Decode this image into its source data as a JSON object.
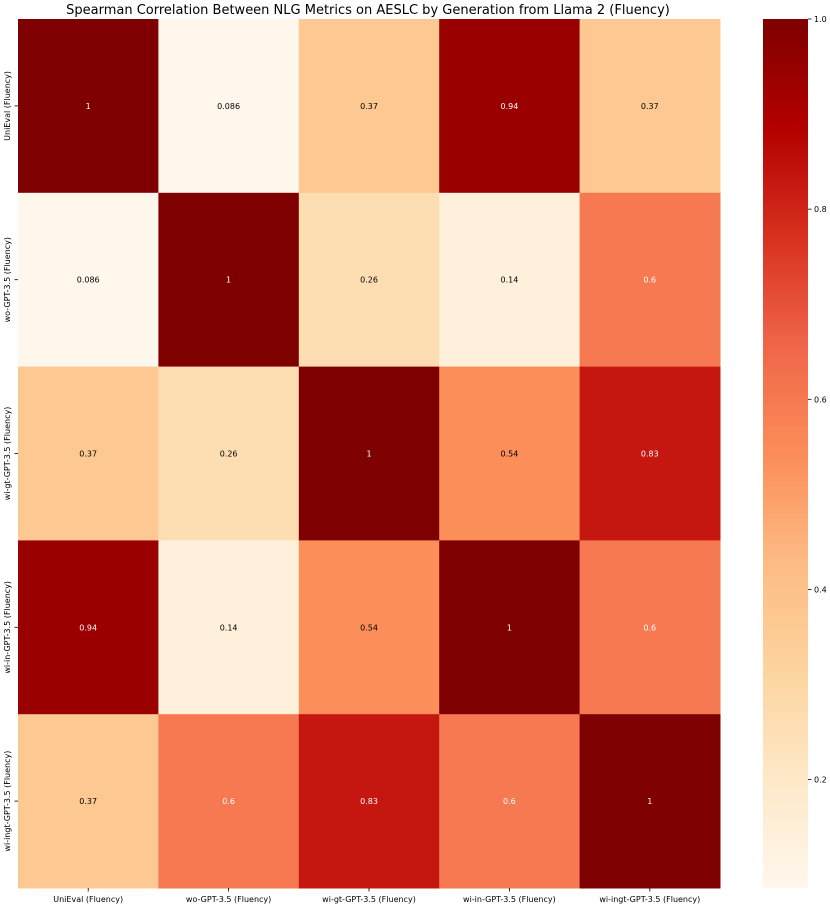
{
  "chart_data": {
    "type": "heatmap",
    "title": "Spearman Correlation Between NLG Metrics on AESLC by Generation from Llama 2 (Fluency)",
    "xlabel": "",
    "ylabel": "",
    "x_categories": [
      "UniEval (Fluency)",
      "wo-GPT-3.5 (Fluency)",
      "wi-gt-GPT-3.5 (Fluency)",
      "wi-in-GPT-3.5 (Fluency)",
      "wi-ingt-GPT-3.5 (Fluency)"
    ],
    "y_categories": [
      "UniEval (Fluency)",
      "wo-GPT-3.5 (Fluency)",
      "wi-gt-GPT-3.5 (Fluency)",
      "wi-in-GPT-3.5 (Fluency)",
      "wi-ingt-GPT-3.5 (Fluency)"
    ],
    "values": [
      [
        1,
        0.086,
        0.37,
        0.94,
        0.37
      ],
      [
        0.086,
        1,
        0.26,
        0.14,
        0.6
      ],
      [
        0.37,
        0.26,
        1,
        0.54,
        0.83
      ],
      [
        0.94,
        0.14,
        0.54,
        1,
        0.6
      ],
      [
        0.37,
        0.6,
        0.83,
        0.6,
        1
      ]
    ],
    "labels": [
      [
        "1",
        "0.086",
        "0.37",
        "0.94",
        "0.37"
      ],
      [
        "0.086",
        "1",
        "0.26",
        "0.14",
        "0.6"
      ],
      [
        "0.37",
        "0.26",
        "1",
        "0.54",
        "0.83"
      ],
      [
        "0.94",
        "0.14",
        "0.54",
        "1",
        "0.6"
      ],
      [
        "0.37",
        "0.6",
        "0.83",
        "0.6",
        "1"
      ]
    ],
    "colormap": "OrRd",
    "colormap_stops": [
      "#fff7ec",
      "#fee8c8",
      "#fdd49e",
      "#fdbb84",
      "#fc8d59",
      "#ef6548",
      "#d7301f",
      "#b30000",
      "#7f0000"
    ],
    "vmin": 0.086,
    "vmax": 1.0,
    "colorbar": {
      "position": "right",
      "ticks": [
        0.2,
        0.4,
        0.6,
        0.8,
        1.0
      ],
      "tick_labels": [
        "0.2",
        "0.4",
        "0.6",
        "0.8",
        "1.0"
      ]
    },
    "grid": false
  }
}
